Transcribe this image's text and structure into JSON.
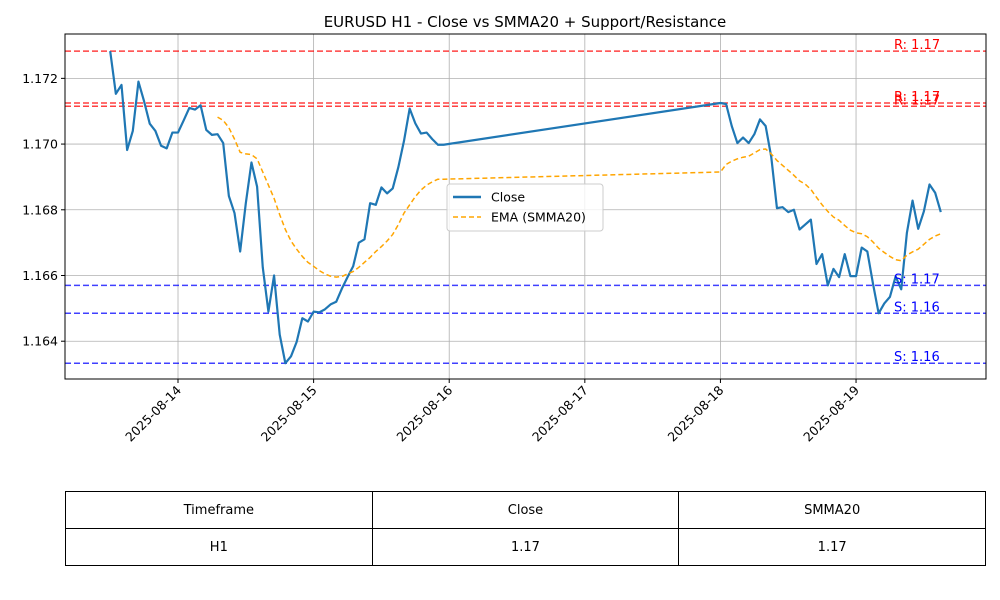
{
  "chart_data": {
    "type": "line",
    "title": "EURUSD H1 - Close vs SMMA20 + Support/Resistance",
    "xlabel": "",
    "ylabel": "",
    "x_ticks": [
      "2025-08-14",
      "2025-08-15",
      "2025-08-16",
      "2025-08-17",
      "2025-08-18",
      "2025-08-19"
    ],
    "x_range": [
      "2025-08-13 04:00",
      "2025-08-19 23:00"
    ],
    "ylim": [
      1.16285,
      1.17335
    ],
    "y_ticks": [
      1.164,
      1.166,
      1.168,
      1.17,
      1.172
    ],
    "y_tick_labels": [
      "1.164",
      "1.166",
      "1.168",
      "1.170",
      "1.172"
    ],
    "grid": true,
    "legend_position": "center",
    "series": [
      {
        "name": "Close",
        "color": "#1f77b4",
        "style": "solid",
        "points": [
          [
            "2025-08-13 12:00",
            1.17283
          ],
          [
            "2025-08-13 13:00",
            1.17153
          ],
          [
            "2025-08-13 14:00",
            1.1718
          ],
          [
            "2025-08-13 15:00",
            1.16982
          ],
          [
            "2025-08-13 16:00",
            1.1704
          ],
          [
            "2025-08-13 17:00",
            1.1719
          ],
          [
            "2025-08-13 18:00",
            1.1713
          ],
          [
            "2025-08-13 19:00",
            1.17062
          ],
          [
            "2025-08-13 20:00",
            1.1704
          ],
          [
            "2025-08-13 21:00",
            1.16995
          ],
          [
            "2025-08-13 22:00",
            1.16987
          ],
          [
            "2025-08-13 23:00",
            1.17035
          ],
          [
            "2025-08-14 00:00",
            1.17035
          ],
          [
            "2025-08-14 01:00",
            1.17072
          ],
          [
            "2025-08-14 02:00",
            1.1711
          ],
          [
            "2025-08-14 03:00",
            1.17105
          ],
          [
            "2025-08-14 04:00",
            1.17118
          ],
          [
            "2025-08-14 05:00",
            1.17043
          ],
          [
            "2025-08-14 06:00",
            1.17028
          ],
          [
            "2025-08-14 07:00",
            1.1703
          ],
          [
            "2025-08-14 08:00",
            1.17003
          ],
          [
            "2025-08-14 09:00",
            1.16842
          ],
          [
            "2025-08-14 10:00",
            1.1679
          ],
          [
            "2025-08-14 11:00",
            1.16673
          ],
          [
            "2025-08-14 12:00",
            1.1682
          ],
          [
            "2025-08-14 13:00",
            1.16944
          ],
          [
            "2025-08-14 14:00",
            1.1687
          ],
          [
            "2025-08-14 15:00",
            1.16625
          ],
          [
            "2025-08-14 16:00",
            1.1649
          ],
          [
            "2025-08-14 17:00",
            1.166
          ],
          [
            "2025-08-14 18:00",
            1.1642
          ],
          [
            "2025-08-14 19:00",
            1.16333
          ],
          [
            "2025-08-14 20:00",
            1.16354
          ],
          [
            "2025-08-14 21:00",
            1.16398
          ],
          [
            "2025-08-14 22:00",
            1.1647
          ],
          [
            "2025-08-14 23:00",
            1.1646
          ],
          [
            "2025-08-15 00:00",
            1.1649
          ],
          [
            "2025-08-15 01:00",
            1.16488
          ],
          [
            "2025-08-15 02:00",
            1.16497
          ],
          [
            "2025-08-15 03:00",
            1.16512
          ],
          [
            "2025-08-15 04:00",
            1.1652
          ],
          [
            "2025-08-15 05:00",
            1.1656
          ],
          [
            "2025-08-15 06:00",
            1.16595
          ],
          [
            "2025-08-15 07:00",
            1.16628
          ],
          [
            "2025-08-15 08:00",
            1.167
          ],
          [
            "2025-08-15 09:00",
            1.1671
          ],
          [
            "2025-08-15 10:00",
            1.1682
          ],
          [
            "2025-08-15 11:00",
            1.16815
          ],
          [
            "2025-08-15 12:00",
            1.16868
          ],
          [
            "2025-08-15 13:00",
            1.1685
          ],
          [
            "2025-08-15 14:00",
            1.16865
          ],
          [
            "2025-08-15 15:00",
            1.1693
          ],
          [
            "2025-08-15 16:00",
            1.1701
          ],
          [
            "2025-08-15 17:00",
            1.17108
          ],
          [
            "2025-08-15 18:00",
            1.17063
          ],
          [
            "2025-08-15 19:00",
            1.17032
          ],
          [
            "2025-08-15 20:00",
            1.17035
          ],
          [
            "2025-08-15 21:00",
            1.17015
          ],
          [
            "2025-08-15 22:00",
            1.16998
          ],
          [
            "2025-08-15 23:00",
            1.16998
          ],
          [
            "2025-08-18 00:00",
            1.17125
          ],
          [
            "2025-08-18 01:00",
            1.17122
          ],
          [
            "2025-08-18 02:00",
            1.17055
          ],
          [
            "2025-08-18 03:00",
            1.17003
          ],
          [
            "2025-08-18 04:00",
            1.1702
          ],
          [
            "2025-08-18 05:00",
            1.17003
          ],
          [
            "2025-08-18 06:00",
            1.1703
          ],
          [
            "2025-08-18 07:00",
            1.17075
          ],
          [
            "2025-08-18 08:00",
            1.17055
          ],
          [
            "2025-08-18 09:00",
            1.1696
          ],
          [
            "2025-08-18 10:00",
            1.16805
          ],
          [
            "2025-08-18 11:00",
            1.16808
          ],
          [
            "2025-08-18 12:00",
            1.16793
          ],
          [
            "2025-08-18 13:00",
            1.168
          ],
          [
            "2025-08-18 14:00",
            1.1674
          ],
          [
            "2025-08-18 15:00",
            1.16755
          ],
          [
            "2025-08-18 16:00",
            1.1677
          ],
          [
            "2025-08-18 17:00",
            1.16635
          ],
          [
            "2025-08-18 18:00",
            1.16665
          ],
          [
            "2025-08-18 19:00",
            1.1657
          ],
          [
            "2025-08-18 20:00",
            1.1662
          ],
          [
            "2025-08-18 21:00",
            1.16595
          ],
          [
            "2025-08-18 22:00",
            1.16665
          ],
          [
            "2025-08-18 23:00",
            1.16598
          ],
          [
            "2025-08-19 00:00",
            1.16598
          ],
          [
            "2025-08-19 01:00",
            1.16685
          ],
          [
            "2025-08-19 02:00",
            1.16673
          ],
          [
            "2025-08-19 03:00",
            1.16575
          ],
          [
            "2025-08-19 04:00",
            1.16485
          ],
          [
            "2025-08-19 05:00",
            1.16515
          ],
          [
            "2025-08-19 06:00",
            1.16535
          ],
          [
            "2025-08-19 07:00",
            1.16597
          ],
          [
            "2025-08-19 08:00",
            1.16558
          ],
          [
            "2025-08-19 09:00",
            1.1673
          ],
          [
            "2025-08-19 10:00",
            1.16828
          ],
          [
            "2025-08-19 11:00",
            1.16742
          ],
          [
            "2025-08-19 12:00",
            1.16795
          ],
          [
            "2025-08-19 13:00",
            1.16877
          ],
          [
            "2025-08-19 14:00",
            1.16852
          ],
          [
            "2025-08-19 15:00",
            1.16793
          ]
        ]
      },
      {
        "name": "EMA (SMMA20)",
        "color": "#ffa500",
        "style": "dashed",
        "points": [
          [
            "2025-08-14 07:00",
            1.17082
          ],
          [
            "2025-08-14 08:00",
            1.17072
          ],
          [
            "2025-08-14 09:00",
            1.1705
          ],
          [
            "2025-08-14 10:00",
            1.17015
          ],
          [
            "2025-08-14 11:00",
            1.16975
          ],
          [
            "2025-08-14 12:00",
            1.1697
          ],
          [
            "2025-08-14 13:00",
            1.16968
          ],
          [
            "2025-08-14 14:00",
            1.16955
          ],
          [
            "2025-08-14 15:00",
            1.16915
          ],
          [
            "2025-08-14 16:00",
            1.16875
          ],
          [
            "2025-08-14 17:00",
            1.16835
          ],
          [
            "2025-08-14 18:00",
            1.16785
          ],
          [
            "2025-08-14 19:00",
            1.1674
          ],
          [
            "2025-08-14 20:00",
            1.16705
          ],
          [
            "2025-08-14 21:00",
            1.1668
          ],
          [
            "2025-08-14 22:00",
            1.16658
          ],
          [
            "2025-08-14 23:00",
            1.1664
          ],
          [
            "2025-08-15 00:00",
            1.16628
          ],
          [
            "2025-08-15 01:00",
            1.16615
          ],
          [
            "2025-08-15 02:00",
            1.16605
          ],
          [
            "2025-08-15 03:00",
            1.16598
          ],
          [
            "2025-08-15 04:00",
            1.16595
          ],
          [
            "2025-08-15 05:00",
            1.16597
          ],
          [
            "2025-08-15 06:00",
            1.16605
          ],
          [
            "2025-08-15 07:00",
            1.16612
          ],
          [
            "2025-08-15 08:00",
            1.16625
          ],
          [
            "2025-08-15 09:00",
            1.1664
          ],
          [
            "2025-08-15 10:00",
            1.16655
          ],
          [
            "2025-08-15 11:00",
            1.16673
          ],
          [
            "2025-08-15 12:00",
            1.16688
          ],
          [
            "2025-08-15 13:00",
            1.16705
          ],
          [
            "2025-08-15 14:00",
            1.16725
          ],
          [
            "2025-08-15 15:00",
            1.16755
          ],
          [
            "2025-08-15 16:00",
            1.1679
          ],
          [
            "2025-08-15 17:00",
            1.16815
          ],
          [
            "2025-08-15 18:00",
            1.1684
          ],
          [
            "2025-08-15 19:00",
            1.1686
          ],
          [
            "2025-08-15 20:00",
            1.16875
          ],
          [
            "2025-08-15 21:00",
            1.16885
          ],
          [
            "2025-08-15 22:00",
            1.16893
          ],
          [
            "2025-08-15 23:00",
            1.16893
          ],
          [
            "2025-08-18 00:00",
            1.16915
          ],
          [
            "2025-08-18 01:00",
            1.16938
          ],
          [
            "2025-08-18 02:00",
            1.16948
          ],
          [
            "2025-08-18 03:00",
            1.16955
          ],
          [
            "2025-08-18 04:00",
            1.1696
          ],
          [
            "2025-08-18 05:00",
            1.16963
          ],
          [
            "2025-08-18 06:00",
            1.16973
          ],
          [
            "2025-08-18 07:00",
            1.16983
          ],
          [
            "2025-08-18 08:00",
            1.16985
          ],
          [
            "2025-08-18 09:00",
            1.1697
          ],
          [
            "2025-08-18 10:00",
            1.1695
          ],
          [
            "2025-08-18 11:00",
            1.16935
          ],
          [
            "2025-08-18 12:00",
            1.1692
          ],
          [
            "2025-08-18 13:00",
            1.16905
          ],
          [
            "2025-08-18 14:00",
            1.16888
          ],
          [
            "2025-08-18 15:00",
            1.16878
          ],
          [
            "2025-08-18 16:00",
            1.16862
          ],
          [
            "2025-08-18 17:00",
            1.16838
          ],
          [
            "2025-08-18 18:00",
            1.16815
          ],
          [
            "2025-08-18 19:00",
            1.16795
          ],
          [
            "2025-08-18 20:00",
            1.16778
          ],
          [
            "2025-08-18 21:00",
            1.16768
          ],
          [
            "2025-08-18 22:00",
            1.16752
          ],
          [
            "2025-08-18 23:00",
            1.16738
          ],
          [
            "2025-08-19 00:00",
            1.1673
          ],
          [
            "2025-08-19 01:00",
            1.16727
          ],
          [
            "2025-08-19 02:00",
            1.16718
          ],
          [
            "2025-08-19 03:00",
            1.16702
          ],
          [
            "2025-08-19 04:00",
            1.16683
          ],
          [
            "2025-08-19 05:00",
            1.1667
          ],
          [
            "2025-08-19 06:00",
            1.16658
          ],
          [
            "2025-08-19 07:00",
            1.16648
          ],
          [
            "2025-08-19 08:00",
            1.16645
          ],
          [
            "2025-08-19 09:00",
            1.16662
          ],
          [
            "2025-08-19 10:00",
            1.16672
          ],
          [
            "2025-08-19 11:00",
            1.1668
          ],
          [
            "2025-08-19 12:00",
            1.16695
          ],
          [
            "2025-08-19 13:00",
            1.1671
          ],
          [
            "2025-08-19 14:00",
            1.1672
          ],
          [
            "2025-08-19 15:00",
            1.16727
          ]
        ]
      }
    ],
    "levels": [
      {
        "kind": "resistance",
        "value": 1.17283,
        "label": "R: 1.17",
        "color": "#ff0000"
      },
      {
        "kind": "resistance",
        "value": 1.17125,
        "label": "R: 1.17",
        "color": "#ff0000"
      },
      {
        "kind": "resistance",
        "value": 1.17115,
        "label": "R: 1.17",
        "color": "#ff0000"
      },
      {
        "kind": "support",
        "value": 1.1657,
        "label": "S: 1.17",
        "color": "#0000ff"
      },
      {
        "kind": "support",
        "value": 1.16485,
        "label": "S: 1.16",
        "color": "#0000ff"
      },
      {
        "kind": "support",
        "value": 1.16333,
        "label": "S: 1.16",
        "color": "#0000ff"
      }
    ]
  },
  "table": {
    "headers": [
      "Timeframe",
      "Close",
      "SMMA20"
    ],
    "rows": [
      [
        "H1",
        "1.17",
        "1.17"
      ]
    ]
  }
}
